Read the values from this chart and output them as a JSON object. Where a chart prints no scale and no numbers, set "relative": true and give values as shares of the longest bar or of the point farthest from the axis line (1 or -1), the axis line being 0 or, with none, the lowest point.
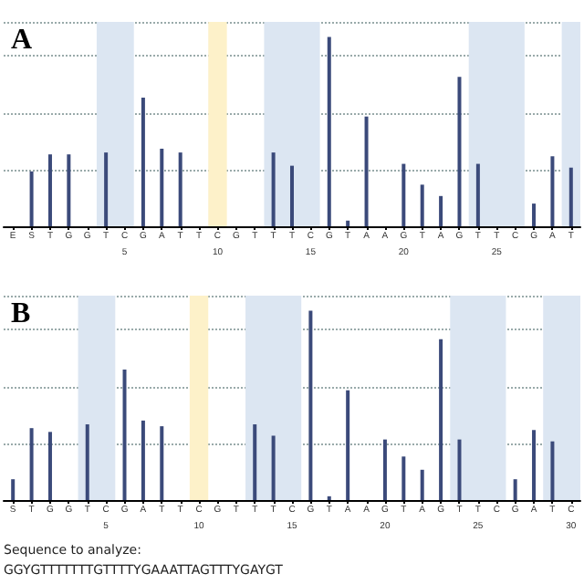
{
  "chart_data": [
    {
      "type": "bar",
      "title": "A",
      "relative": true,
      "grid": "y",
      "categories": [
        "E",
        "S",
        "T",
        "G",
        "G",
        "T",
        "C",
        "G",
        "A",
        "T",
        "T",
        "C",
        "G",
        "T",
        "T",
        "T",
        "C",
        "G",
        "T",
        "A",
        "A",
        "G",
        "T",
        "A",
        "G",
        "T",
        "T",
        "C",
        "G",
        "A",
        "T"
      ],
      "x2lim": [
        -1.5,
        29.5
      ],
      "x2ticks": [
        5,
        10,
        15,
        20,
        25
      ],
      "series": [
        {
          "color": "#3b4a7a",
          "values": [
            0,
            0.29,
            0.38,
            0.38,
            0,
            0.39,
            0,
            0.68,
            0.41,
            0.39,
            0,
            0,
            0,
            0,
            0.39,
            0.32,
            0,
            1,
            0.03,
            0.58,
            0,
            0.33,
            0.22,
            0.16,
            0.79,
            0.33,
            0,
            0,
            0.12,
            0.37,
            0.31
          ]
        }
      ],
      "bands": [
        {
          "axis": "x2",
          "from": 3.5,
          "to": 5.5,
          "color": "#dce6f2"
        },
        {
          "axis": "x2",
          "from": 9.5,
          "to": 10.5,
          "color": "#fdf1c9"
        },
        {
          "axis": "x2",
          "from": 12.5,
          "to": 15.5,
          "color": "#dce6f2"
        },
        {
          "axis": "x2",
          "from": 23.5,
          "to": 26.5,
          "color": "#dce6f2"
        },
        {
          "axis": "x2",
          "from": 28.5,
          "to": 29.5,
          "color": "#dce6f2"
        }
      ]
    },
    {
      "type": "bar",
      "title": "B",
      "relative": true,
      "grid": "y",
      "categories": [
        "S",
        "T",
        "G",
        "G",
        "T",
        "C",
        "G",
        "A",
        "T",
        "T",
        "C",
        "G",
        "T",
        "T",
        "T",
        "C",
        "G",
        "T",
        "A",
        "A",
        "G",
        "T",
        "A",
        "G",
        "T",
        "T",
        "C",
        "G",
        "A",
        "T",
        "C"
      ],
      "x2lim": [
        -0.5,
        30.5
      ],
      "x2ticks": [
        5,
        10,
        15,
        20,
        25,
        30
      ],
      "series": [
        {
          "color": "#3b4a7a",
          "values": [
            0.11,
            0.38,
            0.36,
            0,
            0.4,
            0,
            0.69,
            0.42,
            0.39,
            0,
            0,
            0,
            0,
            0.4,
            0.34,
            0,
            1,
            0.02,
            0.58,
            0,
            0.32,
            0.23,
            0.16,
            0.85,
            0.32,
            0,
            0,
            0.11,
            0.37,
            0.31,
            0
          ]
        }
      ],
      "bands": [
        {
          "axis": "x2",
          "from": 3.5,
          "to": 5.5,
          "color": "#dce6f2"
        },
        {
          "axis": "x2",
          "from": 9.5,
          "to": 10.5,
          "color": "#fdf1c9"
        },
        {
          "axis": "x2",
          "from": 12.5,
          "to": 15.5,
          "color": "#dce6f2"
        },
        {
          "axis": "x2",
          "from": 23.5,
          "to": 26.5,
          "color": "#dce6f2"
        },
        {
          "axis": "x2",
          "from": 28.5,
          "to": 30.5,
          "color": "#dce6f2"
        }
      ],
      "annotations": [
        "Sequence to analyze:",
        "GGYGTTTTTTTGTTTTYGAAATTAGTTTYGAYGT"
      ]
    }
  ]
}
